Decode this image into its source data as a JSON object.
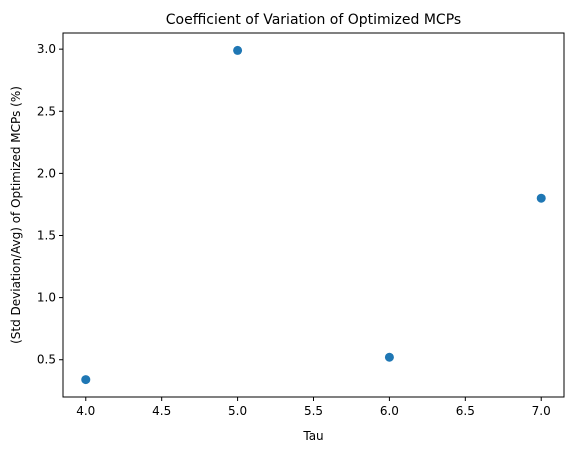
{
  "chart_data": {
    "type": "scatter",
    "title": "Coefficient of Variation of Optimized MCPs",
    "xlabel": "Tau",
    "ylabel": "(Std Deviation/Avg) of Optimized MCPs (%)",
    "x": [
      4.0,
      5.0,
      6.0,
      7.0
    ],
    "y": [
      0.34,
      2.99,
      0.52,
      1.8
    ],
    "xlim": [
      3.85,
      7.15
    ],
    "ylim": [
      0.2,
      3.13
    ],
    "xticks": [
      4.0,
      4.5,
      5.0,
      5.5,
      6.0,
      6.5,
      7.0
    ],
    "xtick_labels": [
      "4.0",
      "4.5",
      "5.0",
      "5.5",
      "6.0",
      "6.5",
      "7.0"
    ],
    "yticks": [
      0.5,
      1.0,
      1.5,
      2.0,
      2.5,
      3.0
    ],
    "ytick_labels": [
      "0.5",
      "1.0",
      "1.5",
      "2.0",
      "2.5",
      "3.0"
    ],
    "grid": false,
    "marker_color": "#1f77b4"
  }
}
